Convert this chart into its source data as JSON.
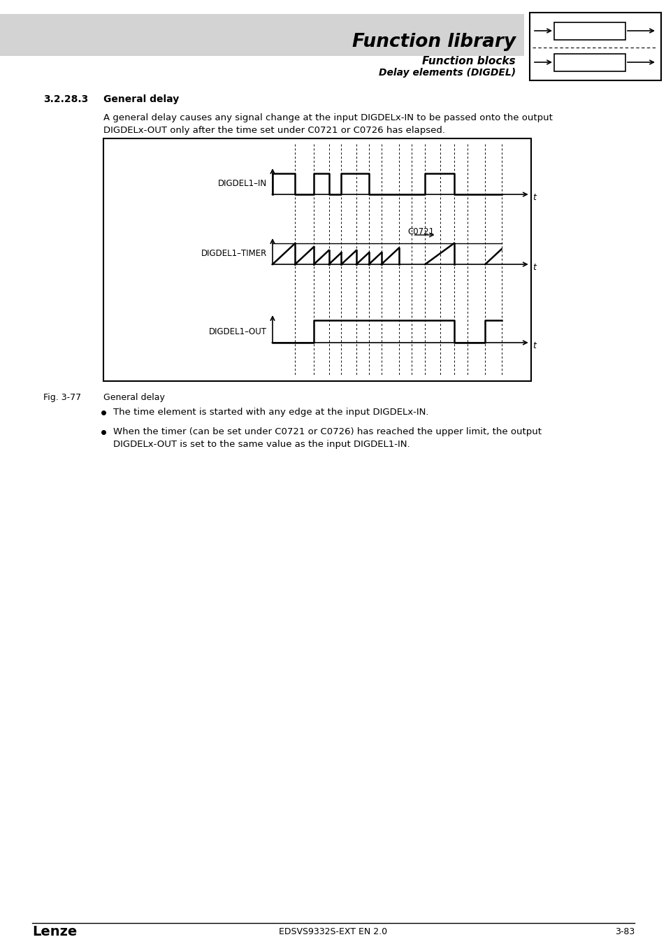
{
  "page_bg": "#ffffff",
  "header_bg": "#d3d3d3",
  "title_text": "Function library",
  "subtitle1": "Function blocks",
  "subtitle2": "Delay elements (DIGDEL)",
  "section_num": "3.2.28.3",
  "section_title": "General delay",
  "body_text1": "A general delay causes any signal change at the input DIGDELx-IN to be passed onto the output",
  "body_text2": "DIGDELx-OUT only after the time set under C0721 or C0726 has elapsed.",
  "fig_label": "Fig. 3-77",
  "fig_caption": "General delay",
  "bullet1": "The time element is started with any edge at the input DIGDELx-IN.",
  "bullet2": "When the timer (can be set under C0721 or C0726) has reached the upper limit, the output",
  "bullet2b": "DIGDELx-OUT is set to the same value as the input DIGDEL1-IN.",
  "footer_left": "Lenze",
  "footer_center": "EDSVS9332S-EXT EN 2.0",
  "footer_right": "3-83",
  "diagram_label_in": "DIGDEL1–IN",
  "diagram_label_timer": "DIGDEL1–TIMER",
  "diagram_label_out": "DIGDEL1–OUT",
  "c0721_label": "C0721"
}
